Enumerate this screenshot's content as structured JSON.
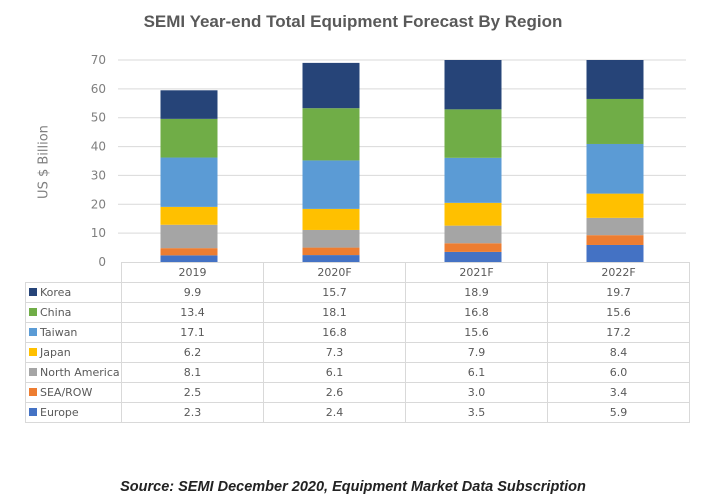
{
  "chart_data": {
    "type": "bar",
    "stacked": true,
    "title": "SEMI Year-end Total Equipment Forecast By Region",
    "xlabel": "",
    "ylabel": "US $ Billion",
    "ylim": [
      0,
      70
    ],
    "yticks": [
      0,
      10,
      20,
      30,
      40,
      50,
      60,
      70
    ],
    "grid": true,
    "legend": "data-table-left",
    "categories": [
      "2019",
      "2020F",
      "2021F",
      "2022F"
    ],
    "series": [
      {
        "name": "Europe",
        "color": "#4472c4",
        "values": [
          2.3,
          2.4,
          3.5,
          5.9
        ]
      },
      {
        "name": "SEA/ROW",
        "color": "#ed7d31",
        "values": [
          2.5,
          2.6,
          3.0,
          3.4
        ]
      },
      {
        "name": "North America",
        "color": "#a5a5a5",
        "values": [
          8.1,
          6.1,
          6.1,
          6.0
        ]
      },
      {
        "name": "Japan",
        "color": "#ffc000",
        "values": [
          6.2,
          7.3,
          7.9,
          8.4
        ]
      },
      {
        "name": "Taiwan",
        "color": "#5b9bd5",
        "values": [
          17.1,
          16.8,
          15.6,
          17.2
        ]
      },
      {
        "name": "China",
        "color": "#70ad47",
        "values": [
          13.4,
          18.1,
          16.8,
          15.6
        ]
      },
      {
        "name": "Korea",
        "color": "#264478",
        "values": [
          9.9,
          15.7,
          18.9,
          19.7
        ]
      }
    ],
    "table": {
      "header": [
        "2019",
        "2020F",
        "2021F",
        "2022F"
      ],
      "rows": [
        {
          "label": "Korea",
          "color": "#264478",
          "values": [
            "9.9",
            "15.7",
            "18.9",
            "19.7"
          ]
        },
        {
          "label": "China",
          "color": "#70ad47",
          "values": [
            "13.4",
            "18.1",
            "16.8",
            "15.6"
          ]
        },
        {
          "label": "Taiwan",
          "color": "#5b9bd5",
          "values": [
            "17.1",
            "16.8",
            "15.6",
            "17.2"
          ]
        },
        {
          "label": "Japan",
          "color": "#ffc000",
          "values": [
            "6.2",
            "7.3",
            "7.9",
            "8.4"
          ]
        },
        {
          "label": "North America",
          "color": "#a5a5a5",
          "values": [
            "8.1",
            "6.1",
            "6.1",
            "6.0"
          ]
        },
        {
          "label": "SEA/ROW",
          "color": "#ed7d31",
          "values": [
            "2.5",
            "2.6",
            "3.0",
            "3.4"
          ]
        },
        {
          "label": "Europe",
          "color": "#4472c4",
          "values": [
            "2.3",
            "2.4",
            "3.5",
            "5.9"
          ]
        }
      ]
    }
  },
  "source": "Source: SEMI December 2020, Equipment Market Data Subscription"
}
